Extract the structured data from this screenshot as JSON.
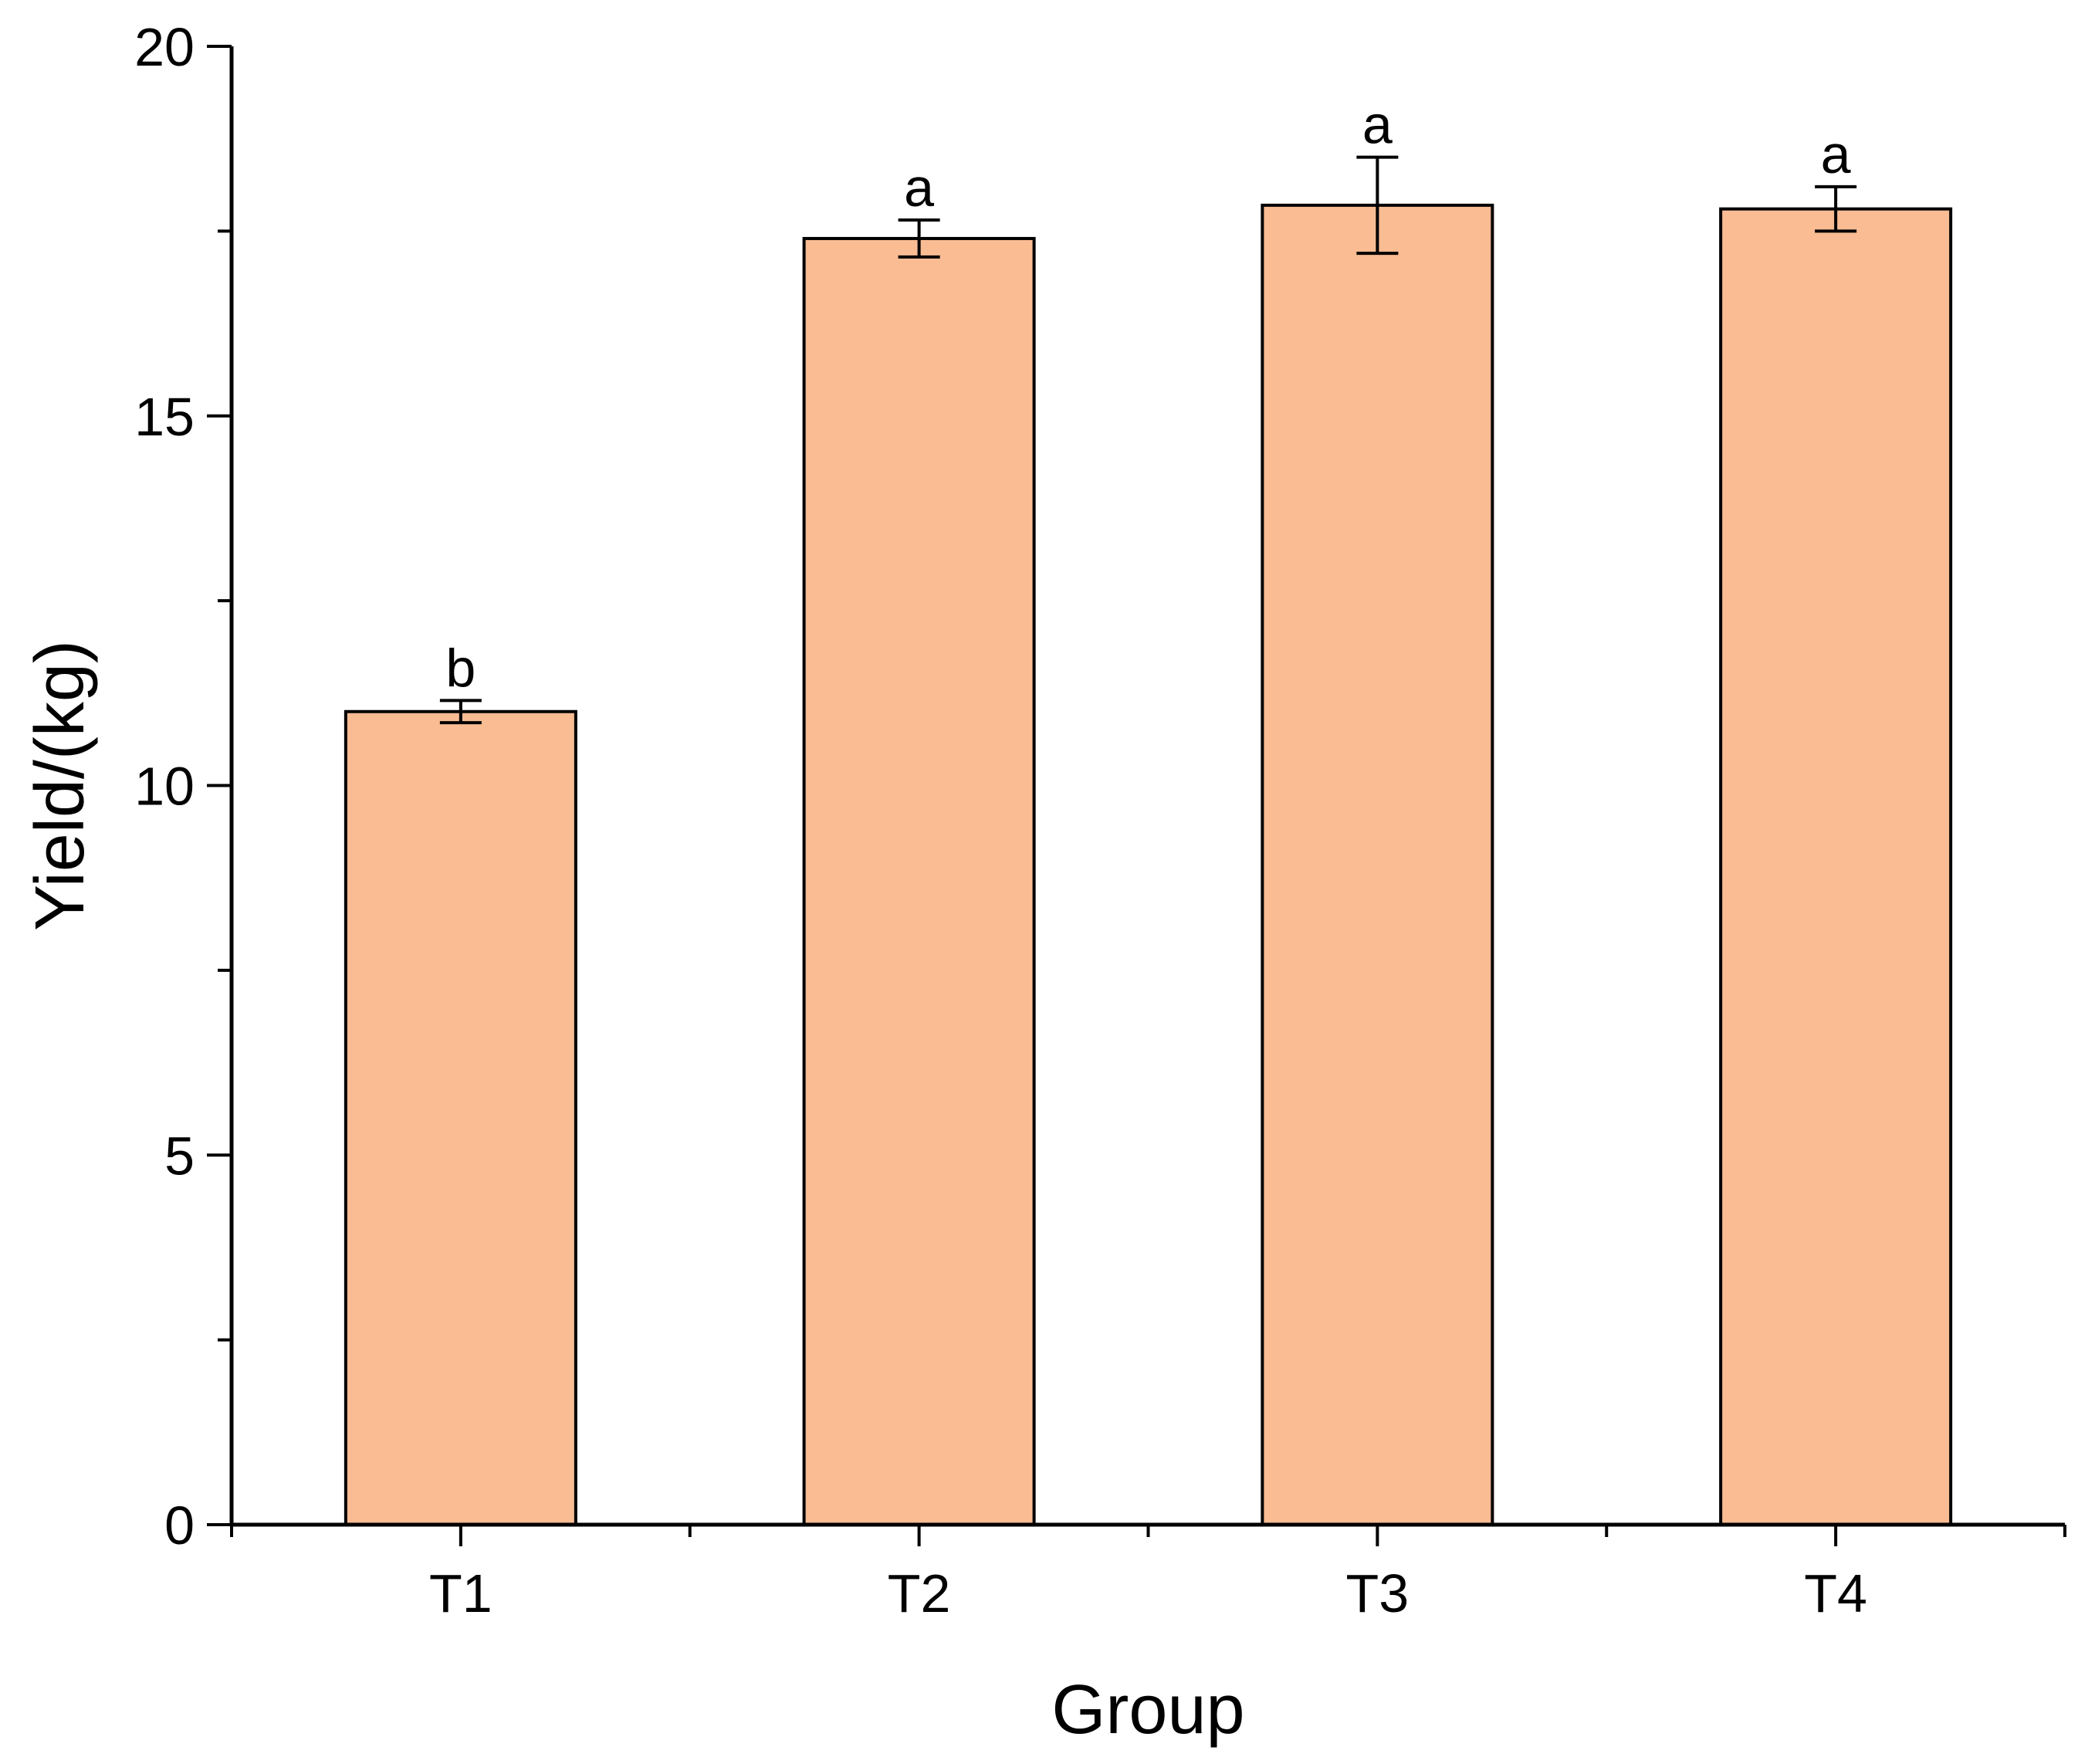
{
  "chart_data": {
    "type": "bar",
    "categories": [
      "T1",
      "T2",
      "T3",
      "T4"
    ],
    "values": [
      11.0,
      17.4,
      17.85,
      17.8
    ],
    "errors": [
      0.15,
      0.25,
      0.65,
      0.3
    ],
    "significance": [
      "b",
      "a",
      "a",
      "a"
    ],
    "xlabel": "Group",
    "ylabel": "Yield/(kg)",
    "ylim": [
      0,
      20
    ],
    "yticks_major": [
      0,
      5,
      10,
      15,
      20
    ],
    "yticks_minor": [
      2.5,
      7.5,
      12.5,
      17.5
    ],
    "grid": false,
    "bar_color": "#f9bc93"
  }
}
